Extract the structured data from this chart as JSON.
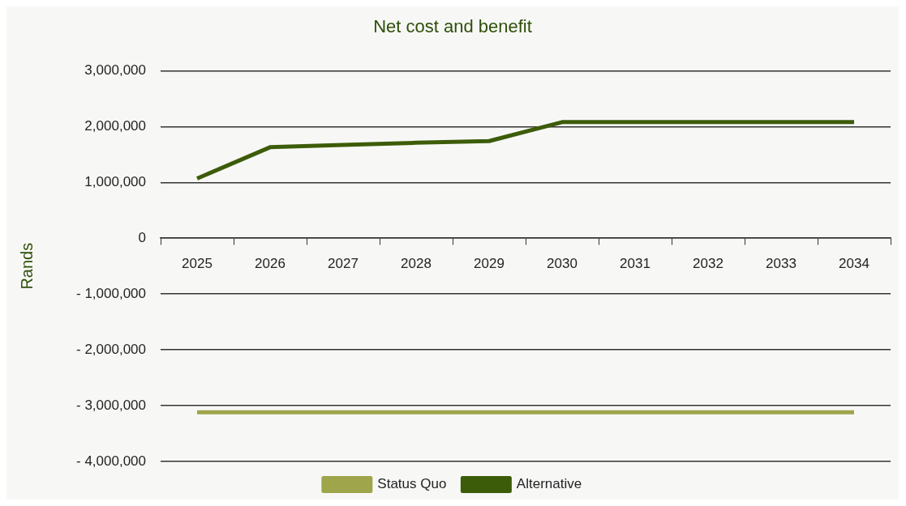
{
  "chart_data": {
    "type": "line",
    "title": "Net cost and benefit",
    "ylabel": "Rands",
    "categories": [
      "2025",
      "2026",
      "2027",
      "2028",
      "2029",
      "2030",
      "2031",
      "2032",
      "2033",
      "2034"
    ],
    "series": [
      {
        "name": "Status Quo",
        "color": "#9ea54a",
        "values": [
          -3120000,
          -3120000,
          -3120000,
          -3120000,
          -3120000,
          -3120000,
          -3120000,
          -3120000,
          -3120000,
          -3120000
        ]
      },
      {
        "name": "Alternative",
        "color": "#3d5c0a",
        "values": [
          1070000,
          1630000,
          1670000,
          1710000,
          1740000,
          2080000,
          2080000,
          2080000,
          2080000,
          2080000
        ]
      }
    ],
    "ylim": [
      -4000000,
      3000000
    ],
    "yticks": [
      {
        "value": -4000000,
        "label": "- 4,000,000"
      },
      {
        "value": -3000000,
        "label": "- 3,000,000"
      },
      {
        "value": -2000000,
        "label": "- 2,000,000"
      },
      {
        "value": -1000000,
        "label": "- 1,000,000"
      },
      0,
      {
        "value": 1000000,
        "label": "1,000,000"
      },
      {
        "value": 2000000,
        "label": "2,000,000"
      },
      {
        "value": 3000000,
        "label": "3,000,000"
      }
    ],
    "grid": "y",
    "legend": "bottom",
    "marker": "none",
    "line_style": "solid"
  }
}
